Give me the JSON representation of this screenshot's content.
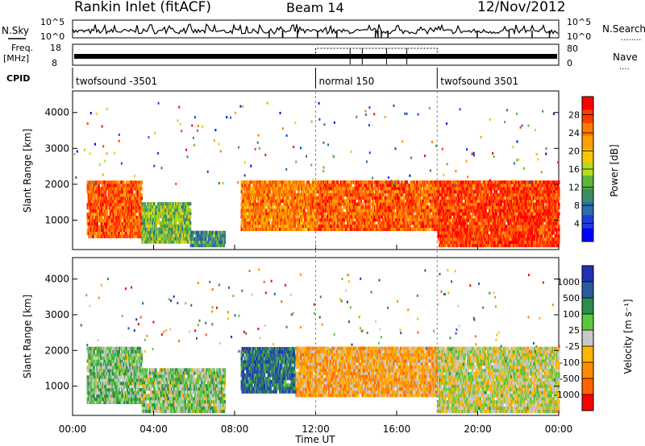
{
  "header": {
    "station": "Rankin Inlet (fitACF)",
    "beam": "Beam 14",
    "date": "12/Nov/2012"
  },
  "summary": {
    "nsky_label": "N.Sky",
    "nsky_ticks": [
      "10^5",
      "10^0"
    ],
    "nsearch_label": "N.Search",
    "nsearch_dots": "........",
    "freq_label": "Freq.",
    "freq_unit": "[MHz]",
    "freq_ticks": [
      "18",
      "8"
    ],
    "nave_ticks": [
      "80",
      "0"
    ],
    "nave_label": "Nave",
    "nave_dots": "....",
    "cpid_label": "CPID"
  },
  "cpid_segments": [
    {
      "label": "twofsound -3501",
      "start_hour": 0
    },
    {
      "label": "normal 150",
      "start_hour": 12
    },
    {
      "label": "twofsound 3501",
      "start_hour": 18
    }
  ],
  "panels": {
    "power": {
      "ylabel": "Slant Range [km]",
      "yticks": [
        "4000",
        "3000",
        "2000",
        "1000"
      ],
      "cbar_label": "Power [dB]",
      "cbar_ticks": [
        "28",
        "24",
        "20",
        "16",
        "12",
        "8",
        "4"
      ],
      "cbar_colors": [
        "#ff0000",
        "#ff3a00",
        "#ff7a00",
        "#ffa000",
        "#f5c800",
        "#b4dc1e",
        "#5fb43c",
        "#3c8c64",
        "#2a6eaa",
        "#1e3cdc",
        "#0000ff"
      ]
    },
    "velocity": {
      "ylabel": "Slant Range [km]",
      "yticks": [
        "4000",
        "3000",
        "2000",
        "1000"
      ],
      "cbar_label": "Velocity [m s⁻¹]",
      "cbar_ticks": [
        "1000",
        "500",
        "100",
        "25",
        "-25",
        "-100",
        "-500",
        "-1000"
      ],
      "cbar_colors": [
        "#1e32b4",
        "#2a5aa0",
        "#2e8c4c",
        "#5ac83c",
        "#c8c8c8",
        "#ffb400",
        "#ff8c00",
        "#ff6400",
        "#ff0000"
      ]
    }
  },
  "xaxis": {
    "ticks": [
      "00:00",
      "04:00",
      "08:00",
      "12:00",
      "16:00",
      "20:00",
      "00:00"
    ],
    "label": "Time UT"
  },
  "chart_data": {
    "type": "heatmap",
    "title": "Rankin Inlet (fitACF)",
    "subtitle": "Beam 14",
    "date": "12/Nov/2012",
    "x_range_hours": [
      0,
      24
    ],
    "xlabel": "Time UT",
    "ylabel": "Slant Range [km]",
    "ylim": [
      180,
      4600
    ],
    "yticks": [
      1000,
      2000,
      3000,
      4000
    ],
    "panels": [
      {
        "name": "Power",
        "unit": "dB",
        "colorbar_range": [
          0,
          32
        ],
        "regions": [
          {
            "t0": 0.7,
            "t1": 3.4,
            "r0": 500,
            "r1": 2100,
            "value": 26
          },
          {
            "t0": 3.4,
            "t1": 5.8,
            "r0": 350,
            "r1": 1500,
            "value": 14
          },
          {
            "t0": 5.8,
            "t1": 7.5,
            "r0": 250,
            "r1": 700,
            "value": 10
          },
          {
            "t0": 8.3,
            "t1": 12.0,
            "r0": 700,
            "r1": 2100,
            "value": 24
          },
          {
            "t0": 12.0,
            "t1": 18.0,
            "r0": 700,
            "r1": 2100,
            "value": 26
          },
          {
            "t0": 18.0,
            "t1": 24.0,
            "r0": 250,
            "r1": 2100,
            "value": 28
          }
        ]
      },
      {
        "name": "Velocity",
        "unit": "m s⁻¹",
        "colorbar_range": [
          -1000,
          1000
        ],
        "regions": [
          {
            "t0": 0.7,
            "t1": 3.4,
            "r0": 500,
            "r1": 2100,
            "value": 200
          },
          {
            "t0": 3.4,
            "t1": 7.5,
            "r0": 250,
            "r1": 1500,
            "value": 150
          },
          {
            "t0": 8.3,
            "t1": 11.0,
            "r0": 800,
            "r1": 2100,
            "value": 600
          },
          {
            "t0": 11.0,
            "t1": 18.0,
            "r0": 700,
            "r1": 2100,
            "value": -300
          },
          {
            "t0": 18.0,
            "t1": 24.0,
            "r0": 250,
            "r1": 2100,
            "value": 0
          }
        ]
      }
    ]
  }
}
